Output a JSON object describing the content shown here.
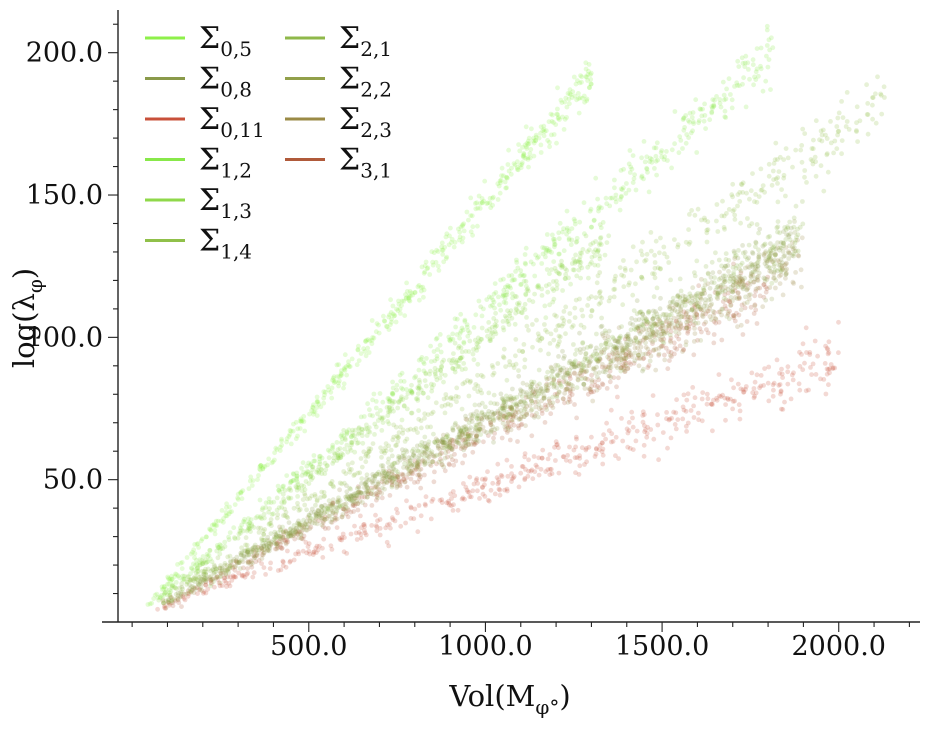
{
  "chart_data": {
    "type": "scatter",
    "xlabel": "Vol(M",
    "xlabel_sub": "φ°",
    "xlabel_close": ")",
    "ylabel": "log(λ",
    "ylabel_sub": "φ",
    "ylabel_close": ")",
    "xlim": [
      -40,
      2230
    ],
    "ylim": [
      0,
      215
    ],
    "xticks": [
      500,
      1000,
      1500,
      2000
    ],
    "xtick_labels": [
      "500.0",
      "1000.0",
      "1500.0",
      "2000.0"
    ],
    "yticks": [
      50,
      100,
      150,
      200
    ],
    "ytick_labels": [
      "50.0",
      "100.0",
      "150.0",
      "200.0"
    ],
    "grid": false,
    "legend_placement": "top-left",
    "series": [
      {
        "name": "Σ",
        "sub": "0,5",
        "color": "#8ef04a",
        "x_range": [
          40,
          1300
        ],
        "slope": 0.1485,
        "intercept": -1.0
      },
      {
        "name": "Σ",
        "sub": "0,8",
        "color": "#8a9a4a",
        "x_range": [
          80,
          1880
        ],
        "slope": 0.07,
        "intercept": 1.0
      },
      {
        "name": "Σ",
        "sub": "0,11",
        "color": "#c8503a",
        "x_range": [
          70,
          2000
        ],
        "slope": 0.046,
        "intercept": 1.5
      },
      {
        "name": "Σ",
        "sub": "1,2",
        "color": "#88e84a",
        "x_range": [
          60,
          1820
        ],
        "slope": 0.11,
        "intercept": 0.0
      },
      {
        "name": "Σ",
        "sub": "1,3",
        "color": "#8fd84a",
        "x_range": [
          70,
          1350
        ],
        "slope": 0.1,
        "intercept": 0.5
      },
      {
        "name": "Σ",
        "sub": "1,4",
        "color": "#90c04a",
        "x_range": [
          80,
          2130
        ],
        "slope": 0.086,
        "intercept": 0.0
      },
      {
        "name": "Σ",
        "sub": "2,1",
        "color": "#8fb84a",
        "x_range": [
          80,
          1900
        ],
        "slope": 0.072,
        "intercept": 0.5
      },
      {
        "name": "Σ",
        "sub": "2,2",
        "color": "#92a04a",
        "x_range": [
          80,
          1880
        ],
        "slope": 0.069,
        "intercept": 0.0
      },
      {
        "name": "Σ",
        "sub": "2,3",
        "color": "#9a8a45",
        "x_range": [
          80,
          1900
        ],
        "slope": 0.068,
        "intercept": 0.0
      },
      {
        "name": "Σ",
        "sub": "3,1",
        "color": "#b05a3a",
        "x_range": [
          80,
          1800
        ],
        "slope": 0.066,
        "intercept": -0.5
      }
    ]
  }
}
